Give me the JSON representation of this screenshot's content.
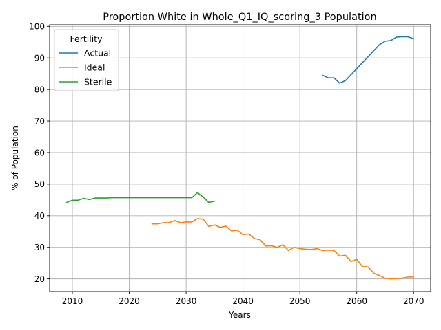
{
  "chart_data": {
    "type": "line",
    "title": "Proportion White in Whole_Q1_IQ_scoring_3 Population",
    "xlabel": "Years",
    "ylabel": "% of Population",
    "xlim": [
      2006,
      2073
    ],
    "ylim": [
      16,
      100.5
    ],
    "xticks": [
      2010,
      2020,
      2030,
      2040,
      2050,
      2060,
      2070
    ],
    "yticks": [
      20,
      30,
      40,
      50,
      60,
      70,
      80,
      90,
      100
    ],
    "grid": true,
    "legend": {
      "title": "Fertility",
      "placement": "top-left"
    },
    "series": [
      {
        "name": "Actual",
        "color": "#1f77b4",
        "x": [
          2054,
          2055,
          2056,
          2057,
          2058,
          2059,
          2060,
          2061,
          2062,
          2063,
          2064,
          2065,
          2066,
          2067,
          2068,
          2069,
          2070
        ],
        "y": [
          84.5,
          83.7,
          83.7,
          82.0,
          82.8,
          84.7,
          86.6,
          88.5,
          90.4,
          92.3,
          94.2,
          95.3,
          95.5,
          96.6,
          96.7,
          96.7,
          96.1
        ]
      },
      {
        "name": "Ideal",
        "color": "#ff7f0e",
        "x": [
          2024,
          2025,
          2026,
          2027,
          2028,
          2029,
          2030,
          2031,
          2032,
          2033,
          2034,
          2035,
          2036,
          2037,
          2038,
          2039,
          2040,
          2041,
          2042,
          2043,
          2044,
          2045,
          2046,
          2047,
          2048,
          2049,
          2050,
          2051,
          2052,
          2053,
          2054,
          2055,
          2056,
          2057,
          2058,
          2059,
          2060,
          2061,
          2062,
          2063,
          2064,
          2065,
          2066,
          2067,
          2068,
          2069,
          2070
        ],
        "y": [
          37.4,
          37.4,
          37.8,
          37.8,
          38.5,
          37.8,
          38.0,
          38.0,
          39.1,
          38.9,
          36.6,
          37.1,
          36.3,
          36.7,
          35.2,
          35.4,
          34.0,
          34.2,
          32.8,
          32.4,
          30.4,
          30.5,
          30.0,
          30.8,
          29.0,
          30.0,
          29.6,
          29.4,
          29.3,
          29.6,
          29.0,
          29.1,
          29.0,
          27.2,
          27.5,
          25.5,
          26.2,
          23.9,
          23.8,
          21.8,
          21.1,
          20.2,
          20.0,
          20.1,
          20.2,
          20.6,
          20.6
        ]
      },
      {
        "name": "Sterile",
        "color": "#2ca02c",
        "x": [
          2009,
          2010,
          2011,
          2012,
          2013,
          2014,
          2015,
          2016,
          2017,
          2018,
          2019,
          2020,
          2021,
          2022,
          2023,
          2024,
          2025,
          2026,
          2027,
          2028,
          2029,
          2030,
          2031,
          2032,
          2033,
          2034,
          2035
        ],
        "y": [
          44.2,
          44.9,
          44.9,
          45.5,
          45.1,
          45.6,
          45.6,
          45.6,
          45.7,
          45.7,
          45.7,
          45.7,
          45.7,
          45.7,
          45.7,
          45.7,
          45.7,
          45.7,
          45.7,
          45.7,
          45.7,
          45.7,
          45.7,
          47.3,
          45.9,
          44.2,
          44.6
        ]
      }
    ]
  }
}
